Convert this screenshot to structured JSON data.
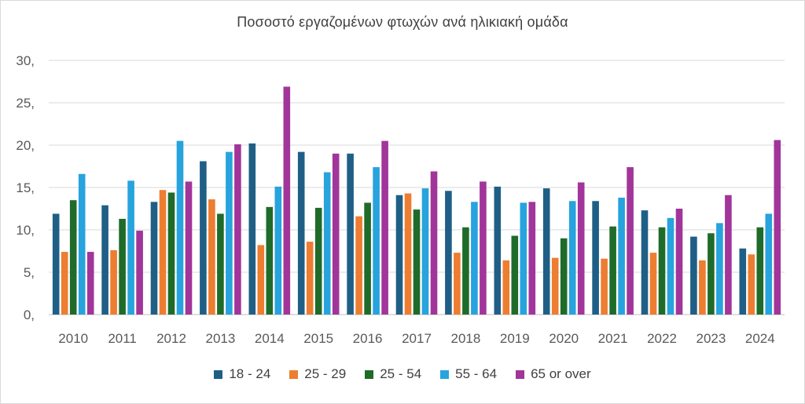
{
  "chart_data": {
    "type": "bar",
    "title": "Ποσοστό εργαζομένων φτωχών ανά ηλικιακή ομάδα",
    "xlabel": "",
    "ylabel": "",
    "ylim": [
      0,
      30
    ],
    "y_ticks": [
      0,
      5,
      10,
      15,
      20,
      25,
      30
    ],
    "y_tick_labels": [
      "0,",
      "5,",
      "10,",
      "15,",
      "20,",
      "25,",
      "30,"
    ],
    "grid": true,
    "legend_position": "bottom",
    "categories": [
      "2010",
      "2011",
      "2012",
      "2013",
      "2014",
      "2015",
      "2016",
      "2017",
      "2018",
      "2019",
      "2020",
      "2021",
      "2022",
      "2023",
      "2024"
    ],
    "series": [
      {
        "name": "18 - 24",
        "color": "#1f5f86",
        "values": [
          11.9,
          12.9,
          13.3,
          18.1,
          20.2,
          19.2,
          19.0,
          14.1,
          14.6,
          15.1,
          14.9,
          13.4,
          12.3,
          9.2,
          7.8
        ]
      },
      {
        "name": "25 - 29",
        "color": "#ed7d31",
        "values": [
          7.4,
          7.6,
          14.7,
          13.6,
          8.2,
          8.6,
          11.6,
          14.3,
          7.3,
          6.4,
          6.7,
          6.6,
          7.3,
          6.4,
          7.1
        ]
      },
      {
        "name": "25 - 54",
        "color": "#1f6b2a",
        "values": [
          13.5,
          11.3,
          14.4,
          11.9,
          12.7,
          12.6,
          13.2,
          12.4,
          10.3,
          9.3,
          9.0,
          10.4,
          10.3,
          9.6,
          10.3
        ]
      },
      {
        "name": "55 - 64",
        "color": "#27a3dd",
        "values": [
          16.6,
          15.8,
          20.5,
          19.2,
          15.1,
          16.8,
          17.4,
          14.9,
          13.3,
          13.2,
          13.4,
          13.8,
          11.4,
          10.8,
          11.9
        ]
      },
      {
        "name": "65 or over",
        "color": "#a1359a",
        "values": [
          7.4,
          9.9,
          15.7,
          20.1,
          26.9,
          19.0,
          20.5,
          16.9,
          15.7,
          13.3,
          15.6,
          17.4,
          12.5,
          14.1,
          20.6
        ]
      }
    ],
    "colors": {
      "grid": "#d9d9d9",
      "axis": "#bfbfbf",
      "text": "#595959",
      "title": "#404040"
    }
  }
}
